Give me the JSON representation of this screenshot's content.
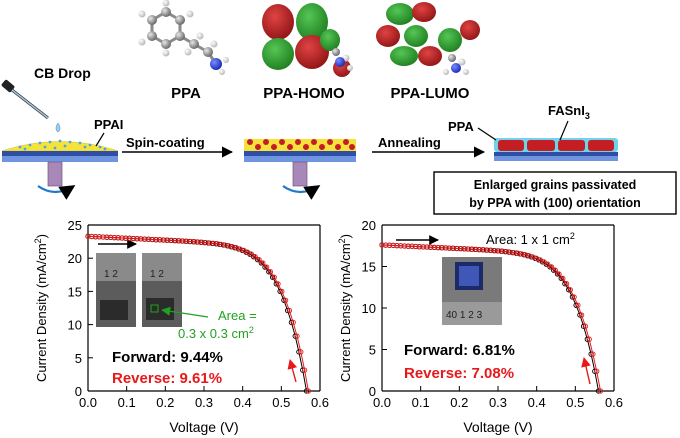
{
  "schematic": {
    "step_cb_drop": "CB Drop",
    "ppai_label": "PPAI",
    "step_spin": "Spin-coating",
    "step_anneal": "Annealing",
    "ppa_label": "PPA",
    "fasni3_main": "FASnI",
    "fasni3_sub": "3",
    "box_line1": "Enlarged grains passivated",
    "box_line2": "by PPA with (100) orientation"
  },
  "molecules": {
    "ppa": "PPA",
    "homo": "PPA-HOMO",
    "lumo": "PPA-LUMO"
  },
  "colors": {
    "forward": "#000000",
    "reverse": "#e8191a",
    "area_small": "#1fa31f",
    "substrate_blue": "#3a5fc2",
    "film_yellow": "#f5e33c",
    "grain_red": "#c41e24",
    "passivation_cyan": "#6fd3ea",
    "orbital_red": "#b51d1d",
    "orbital_green": "#2f9e2f"
  },
  "chart_data": [
    {
      "type": "line",
      "xlabel": "Voltage (V)",
      "ylabel_main": "Current Density (mA/cm",
      "ylabel_sup": "2",
      "ylabel_tail": ")",
      "xlim": [
        0.0,
        0.6
      ],
      "ylim": [
        0,
        25
      ],
      "x_ticks": [
        "0.0",
        "0.1",
        "0.2",
        "0.3",
        "0.4",
        "0.5",
        "0.6"
      ],
      "y_ticks": [
        "0",
        "5",
        "10",
        "15",
        "20",
        "25"
      ],
      "jsc": 23.3,
      "voc": 0.565,
      "series": [
        {
          "name": "Forward: 9.44%",
          "color": "#000000",
          "jsc": 23.3,
          "voc": 0.565
        },
        {
          "name": "Reverse: 9.61%",
          "color": "#e8191a",
          "jsc": 23.3,
          "voc": 0.57
        }
      ],
      "annotations": {
        "area_line1": "Area =",
        "area_line2": "0.3 x 0.3 cm",
        "area_sup": "2",
        "photo_ruler_left": "1 2",
        "photo_ruler_right": "1 2"
      }
    },
    {
      "type": "line",
      "xlabel": "Voltage (V)",
      "ylabel_main": "Current Density (mA/cm",
      "ylabel_sup": "2",
      "ylabel_tail": ")",
      "xlim": [
        0.0,
        0.6
      ],
      "ylim": [
        0,
        20
      ],
      "x_ticks": [
        "0.0",
        "0.1",
        "0.2",
        "0.3",
        "0.4",
        "0.5",
        "0.6"
      ],
      "y_ticks": [
        "0",
        "5",
        "10",
        "15",
        "20"
      ],
      "series": [
        {
          "name": "Forward: 6.81%",
          "color": "#000000",
          "jsc": 17.6,
          "voc": 0.56
        },
        {
          "name": "Reverse: 7.08%",
          "color": "#e8191a",
          "jsc": 17.6,
          "voc": 0.565
        }
      ],
      "annotations": {
        "area_main": "Area: 1 x 1 cm",
        "area_sup": "2",
        "photo_ruler": "40 1 2 3"
      }
    }
  ]
}
